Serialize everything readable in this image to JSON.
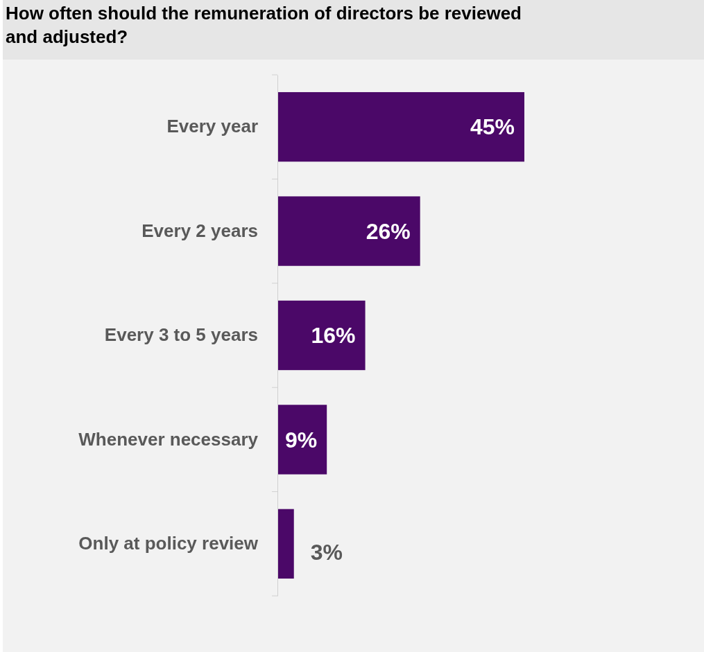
{
  "chart_data": {
    "type": "bar",
    "orientation": "horizontal",
    "title": "How often should the remuneration of directors be reviewed and adjusted?",
    "categories": [
      "Every year",
      "Every 2 years",
      "Every 3 to 5 years",
      "Whenever necessary",
      "Only at policy review"
    ],
    "values": [
      45,
      26,
      16,
      9,
      3
    ],
    "color": "#4b0868",
    "data_labels": true,
    "value_labels": [
      "45%",
      "26%",
      "16%",
      "9%",
      "3%"
    ]
  }
}
